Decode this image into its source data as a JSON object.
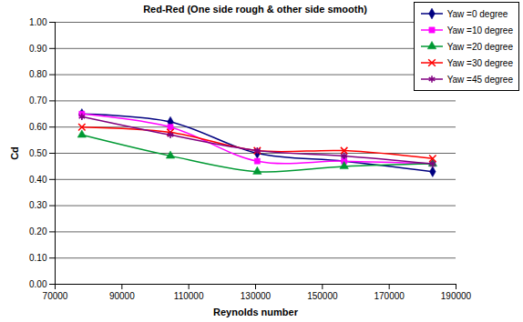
{
  "chart_data": {
    "type": "line",
    "title": "Red-Red (One side rough & other side smooth)",
    "x_label": "Reynolds number",
    "y_label": "Cd",
    "x": [
      78000,
      104500,
      130500,
      156500,
      183000
    ],
    "series": [
      {
        "name": "Yaw =0 degree",
        "color": "#000080",
        "marker": "diamond",
        "values": [
          0.65,
          0.62,
          0.5,
          0.47,
          0.43
        ]
      },
      {
        "name": "Yaw =10 degree",
        "color": "#ff00ff",
        "marker": "square",
        "values": [
          0.65,
          0.6,
          0.47,
          0.47,
          0.46
        ]
      },
      {
        "name": "Yaw =20 degree",
        "color": "#009933",
        "marker": "triangle",
        "values": [
          0.57,
          0.49,
          0.43,
          0.45,
          0.46
        ]
      },
      {
        "name": "Yaw =30 degree",
        "color": "#ff0000",
        "marker": "times",
        "values": [
          0.6,
          0.58,
          0.51,
          0.51,
          0.48
        ]
      },
      {
        "name": "Yaw =45 degree",
        "color": "#800080",
        "marker": "asterisk",
        "values": [
          0.64,
          0.57,
          0.51,
          0.49,
          0.46
        ]
      }
    ],
    "xlim": [
      70000,
      190000
    ],
    "xticks": [
      70000,
      90000,
      110000,
      130000,
      150000,
      170000,
      190000
    ],
    "ylim": [
      0,
      1
    ],
    "yticks": [
      {
        "value": 0,
        "label": "0.00"
      },
      {
        "value": 0.1,
        "label": "0.10"
      },
      {
        "value": 0.2,
        "label": "0.20"
      },
      {
        "value": 0.3,
        "label": "0.30"
      },
      {
        "value": 0.4,
        "label": "0.40"
      },
      {
        "value": 0.5,
        "label": "0.50"
      },
      {
        "value": 0.6,
        "label": "0.60"
      },
      {
        "value": 0.7,
        "label": "0.70"
      },
      {
        "value": 0.8,
        "label": "0.80"
      },
      {
        "value": 0.9,
        "label": "0.90"
      },
      {
        "value": 1,
        "label": "1.00"
      }
    ],
    "grid": true,
    "legend": "top-right"
  }
}
